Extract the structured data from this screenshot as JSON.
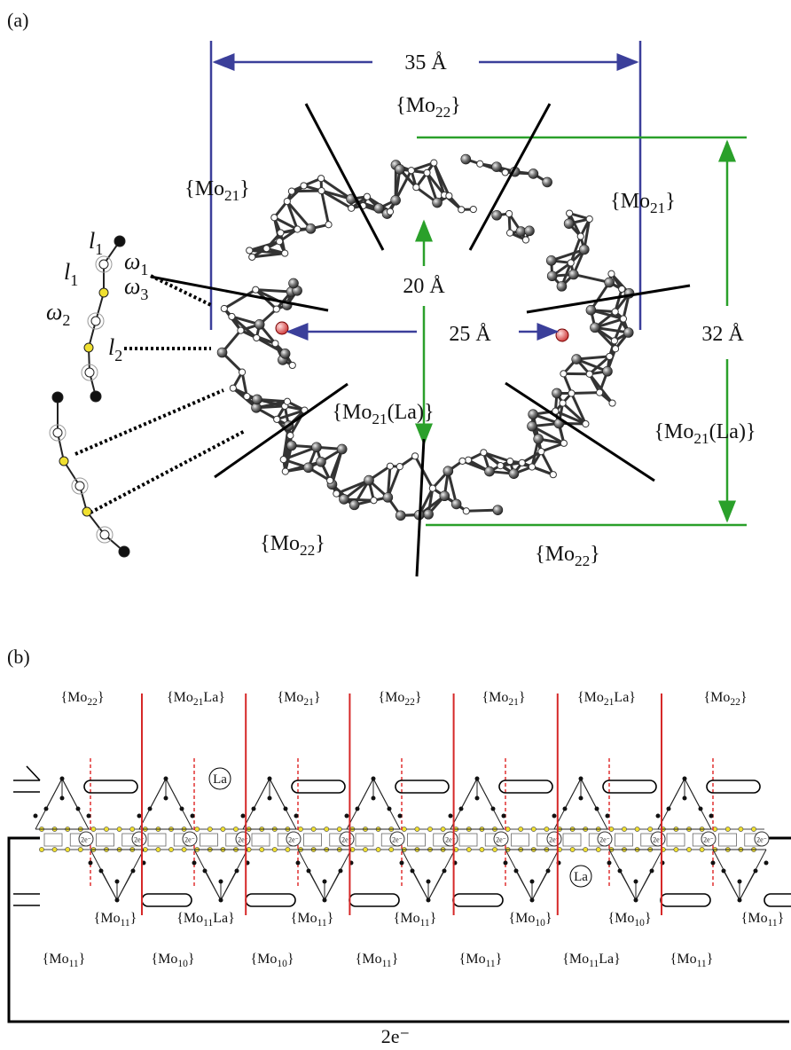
{
  "panel_a": {
    "label": "(a)",
    "dimensions": {
      "width": "35 Å",
      "inner_height": "20 Å",
      "inner_width": "25 Å",
      "height": "32 Å"
    },
    "fragments": [
      {
        "pre": "{Mo",
        "sub": "22",
        "post": "}"
      },
      {
        "pre": "{Mo",
        "sub": "21",
        "post": "}"
      },
      {
        "pre": "{Mo",
        "sub": "21",
        "post": "}"
      },
      {
        "pre": "{Mo",
        "sub": "21",
        "post": "(La)}"
      },
      {
        "pre": "{Mo",
        "sub": "21",
        "post": "(La)}"
      },
      {
        "pre": "{Mo",
        "sub": "22",
        "post": "}"
      },
      {
        "pre": "{Mo",
        "sub": "22",
        "post": "}"
      }
    ],
    "inset_labels": [
      {
        "sym": "l",
        "sub": "1"
      },
      {
        "sym": "ω",
        "sub": "1"
      },
      {
        "sym": "l",
        "sub": "1"
      },
      {
        "sym": "ω",
        "sub": "3"
      },
      {
        "sym": "ω",
        "sub": "2"
      },
      {
        "sym": "l",
        "sub": "2"
      }
    ]
  },
  "panel_b": {
    "label": "(b)",
    "top_labels": [
      {
        "pre": "{Mo",
        "sub": "22",
        "post": "}"
      },
      {
        "pre": "{Mo",
        "sub": "21",
        "post": "La}"
      },
      {
        "pre": "{Mo",
        "sub": "21",
        "post": "}"
      },
      {
        "pre": "{Mo",
        "sub": "22",
        "post": "}"
      },
      {
        "pre": "{Mo",
        "sub": "21",
        "post": "}"
      },
      {
        "pre": "{Mo",
        "sub": "21",
        "post": "La}"
      },
      {
        "pre": "{Mo",
        "sub": "22",
        "post": "}"
      }
    ],
    "bottom_labels_upper": [
      {
        "pre": "{Mo",
        "sub": "11",
        "post": "}"
      },
      {
        "pre": "{Mo",
        "sub": "11",
        "post": "La}"
      },
      {
        "pre": "{Mo",
        "sub": "11",
        "post": "}"
      },
      {
        "pre": "{Mo",
        "sub": "11",
        "post": "}"
      },
      {
        "pre": "{Mo",
        "sub": "10",
        "post": "}"
      },
      {
        "pre": "{Mo",
        "sub": "10",
        "post": "}"
      },
      {
        "pre": "{Mo",
        "sub": "11",
        "post": "}"
      }
    ],
    "bottom_labels_lower": [
      {
        "pre": "{Mo",
        "sub": "11",
        "post": "}"
      },
      {
        "pre": "{Mo",
        "sub": "10",
        "post": "}"
      },
      {
        "pre": "{Mo",
        "sub": "10",
        "post": "}"
      },
      {
        "pre": "{Mo",
        "sub": "11",
        "post": "}"
      },
      {
        "pre": "{Mo",
        "sub": "11",
        "post": "}"
      },
      {
        "pre": "{Mo",
        "sub": "11",
        "post": "La}"
      },
      {
        "pre": "{Mo",
        "sub": "11",
        "post": "}"
      }
    ],
    "la_labels": [
      "La",
      "La"
    ],
    "cell_label": "2e⁻",
    "bracket_label": "2e⁻"
  }
}
